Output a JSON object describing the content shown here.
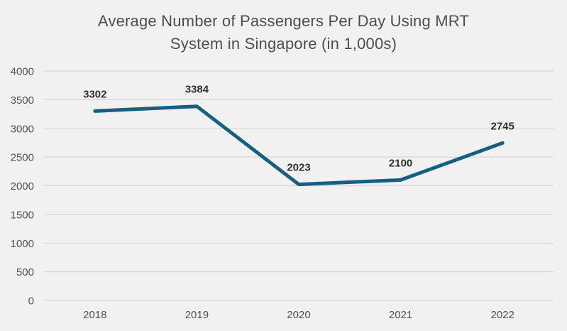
{
  "title": {
    "line1": "Average Number of Passengers Per Day Using MRT",
    "line2": "System in Singapore (in 1,000s)"
  },
  "colors": {
    "background": "#f1f1f1",
    "line": "#156082",
    "gridline": "#d7d7d7",
    "title_text": "#4e4e4e",
    "axis_text": "#505050",
    "data_label_text": "#303030"
  },
  "chart_data": {
    "type": "line",
    "title": "Average Number of Passengers Per Day Using MRT System in Singapore (in 1,000s)",
    "categories": [
      "2018",
      "2019",
      "2020",
      "2021",
      "2022"
    ],
    "values": [
      3302,
      3384,
      2023,
      2100,
      2745
    ],
    "data_labels": [
      "3302",
      "3384",
      "2023",
      "2100",
      "2745"
    ],
    "xlabel": "",
    "ylabel": "",
    "ylim": [
      0,
      4000
    ],
    "yticks": [
      0,
      500,
      1000,
      1500,
      2000,
      2500,
      3000,
      3500,
      4000
    ],
    "grid": "horizontal",
    "legend": "none",
    "markers": "none",
    "data_label_position": "above"
  }
}
